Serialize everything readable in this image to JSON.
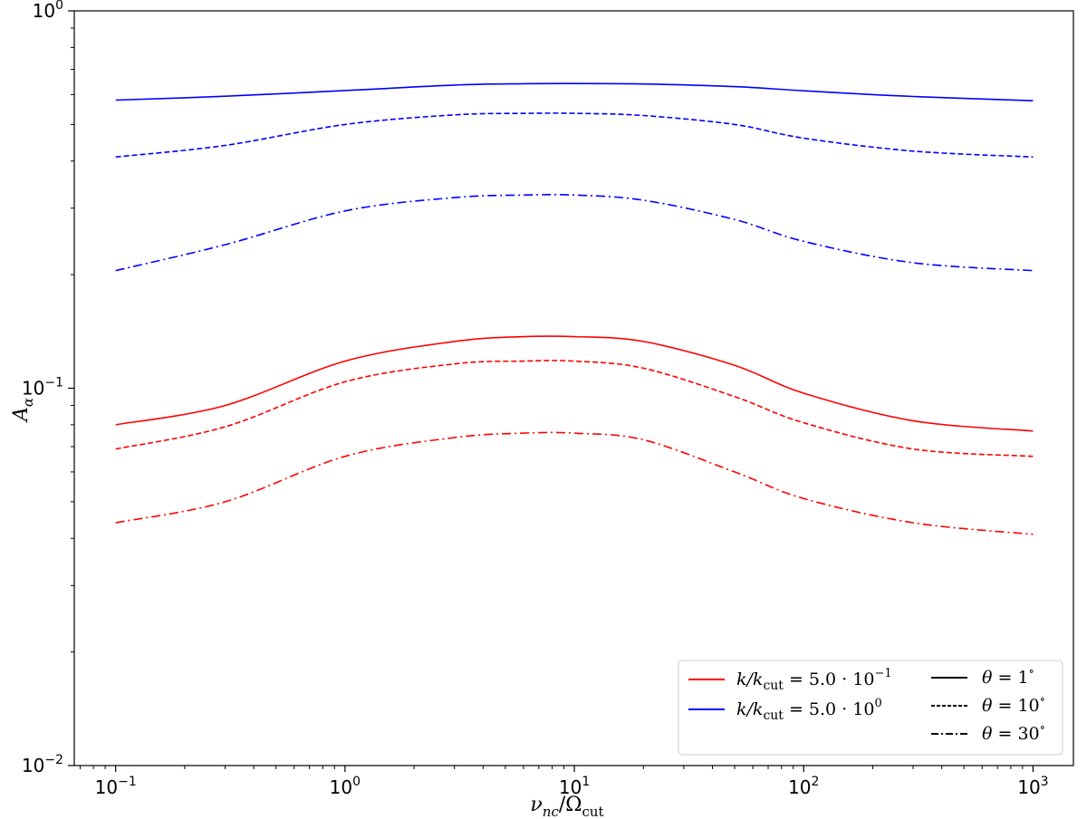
{
  "chart_data": {
    "type": "line",
    "xscale": "log",
    "yscale": "log",
    "xlim": [
      0.066,
      1500
    ],
    "ylim": [
      0.01,
      1
    ],
    "grid": false,
    "xlabel": "ν_nc/Ω_cut",
    "ylabel": "A_α",
    "x_ticks": [
      {
        "value": 0.1,
        "base": "10",
        "exp": "−1"
      },
      {
        "value": 1,
        "base": "10",
        "exp": "0"
      },
      {
        "value": 10,
        "base": "10",
        "exp": "1"
      },
      {
        "value": 100,
        "base": "10",
        "exp": "2"
      },
      {
        "value": 1000,
        "base": "10",
        "exp": "3"
      }
    ],
    "y_ticks": [
      {
        "value": 0.01,
        "base": "10",
        "exp": "−2"
      },
      {
        "value": 0.1,
        "base": "10",
        "exp": "−1"
      },
      {
        "value": 1,
        "base": "10",
        "exp": "0"
      }
    ],
    "legend_placement": "lower right",
    "legend_colors": [
      {
        "text": "k/k_cut = 5.0 · 10^−1",
        "color": "#ff0000"
      },
      {
        "text": "k/k_cut = 5.0 · 10^0",
        "color": "#0000ff"
      }
    ],
    "legend_styles": [
      {
        "text": "θ = 1°",
        "dash": "solid"
      },
      {
        "text": "θ = 10°",
        "dash": "dashed"
      },
      {
        "text": "θ = 30°",
        "dash": "dashdot"
      }
    ],
    "x": [
      0.1,
      0.3,
      1,
      3,
      6,
      10,
      20,
      50,
      100,
      300,
      1000
    ],
    "series": [
      {
        "k": "5.0 · 10^0",
        "theta": "1°",
        "color": "#0000ff",
        "dash": "solid",
        "values": [
          0.58,
          0.594,
          0.615,
          0.636,
          0.641,
          0.642,
          0.64,
          0.63,
          0.614,
          0.593,
          0.578
        ]
      },
      {
        "k": "5.0 · 10^0",
        "theta": "10°",
        "color": "#0000ff",
        "dash": "dashed",
        "values": [
          0.41,
          0.44,
          0.5,
          0.53,
          0.535,
          0.535,
          0.528,
          0.5,
          0.46,
          0.425,
          0.41
        ]
      },
      {
        "k": "5.0 · 10^0",
        "theta": "30°",
        "color": "#0000ff",
        "dash": "dashdot",
        "values": [
          0.205,
          0.24,
          0.295,
          0.32,
          0.325,
          0.325,
          0.315,
          0.28,
          0.245,
          0.215,
          0.205
        ]
      },
      {
        "k": "5.0 · 10^−1",
        "theta": "1°",
        "color": "#ff0000",
        "dash": "solid",
        "values": [
          0.08,
          0.09,
          0.118,
          0.133,
          0.137,
          0.137,
          0.133,
          0.115,
          0.097,
          0.082,
          0.077
        ]
      },
      {
        "k": "5.0 · 10^−1",
        "theta": "10°",
        "color": "#ff0000",
        "dash": "dashed",
        "values": [
          0.069,
          0.079,
          0.104,
          0.116,
          0.118,
          0.118,
          0.113,
          0.095,
          0.081,
          0.069,
          0.066
        ]
      },
      {
        "k": "5.0 · 10^−1",
        "theta": "30°",
        "color": "#ff0000",
        "dash": "dashdot",
        "values": [
          0.044,
          0.05,
          0.066,
          0.074,
          0.076,
          0.076,
          0.073,
          0.06,
          0.051,
          0.044,
          0.041
        ]
      }
    ]
  }
}
